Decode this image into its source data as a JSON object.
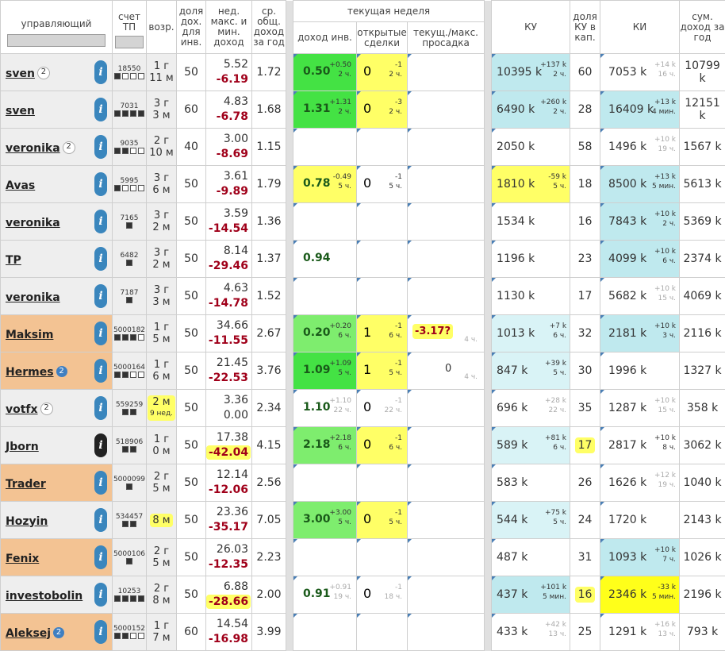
{
  "headers": {
    "manager": "управляющий",
    "account": "счет ТП",
    "age": "возр.",
    "share": "доля дох. для инв.",
    "weekly": "нед. макс. и мин. доход",
    "avg": "ср. общ. доход за год",
    "current_week": "текущая неделя",
    "income": "доход инв.",
    "deals": "открытые сделки",
    "drawdown": "текущ./макс. просадка",
    "ku": "КУ",
    "ku_share": "доля КУ в кап.",
    "ki": "КИ",
    "sum": "сум. доход за год"
  },
  "colors": {
    "blue_icon": "#3a86bd",
    "green": "#44e244",
    "light_green": "#7eed6e",
    "yellow": "#ffff66",
    "cyan": "#bfe9ee",
    "orange": "#f3c393"
  },
  "rows": [
    {
      "name": "sven",
      "badge": "2",
      "badge_style": "w",
      "manager_bg": "gray",
      "icon": "info-icon",
      "icon_dark": false,
      "acct": "18550",
      "dots": [
        1,
        0,
        0,
        0
      ],
      "age1": "1 г",
      "age2": "11 м",
      "age_hl": false,
      "share": "50",
      "wmax": "5.52",
      "wmin": "-6.19",
      "wmin_hl": false,
      "avg": "1.72",
      "inc": "0.50",
      "inc_d1": "+0.50",
      "inc_d2": "2 ч.",
      "inc_bg": "g1",
      "inc_grey": false,
      "deal": "0",
      "deal_d1": "-1",
      "deal_d2": "2 ч.",
      "deal_bg": "y1",
      "deal_grey": false,
      "dd": "",
      "dd_t": "",
      "dd_hl": false,
      "ku": "10395 k",
      "ku_d1": "+137 k",
      "ku_d2": "2 ч.",
      "ku_bg": "c1",
      "ku_grey": false,
      "kushare": "60",
      "kushare_hl": false,
      "ki": "7053 k",
      "ki_d1": "+14 k",
      "ki_d2": "16 ч.",
      "ki_bg": "",
      "ki_grey": true,
      "sum": "10799 k"
    },
    {
      "name": "sven",
      "badge": "",
      "badge_style": "",
      "manager_bg": "gray",
      "icon": "info-icon",
      "icon_dark": false,
      "acct": "7031",
      "dots": [
        1,
        1,
        1,
        1
      ],
      "age1": "3 г",
      "age2": "3 м",
      "age_hl": false,
      "share": "60",
      "wmax": "4.83",
      "wmin": "-6.78",
      "wmin_hl": false,
      "avg": "1.68",
      "inc": "1.31",
      "inc_d1": "+1.31",
      "inc_d2": "2 ч.",
      "inc_bg": "g1",
      "inc_grey": false,
      "deal": "0",
      "deal_d1": "-3",
      "deal_d2": "2 ч.",
      "deal_bg": "y1",
      "deal_grey": false,
      "dd": "",
      "dd_t": "",
      "dd_hl": false,
      "ku": "6490 k",
      "ku_d1": "+260 k",
      "ku_d2": "2 ч.",
      "ku_bg": "c1",
      "ku_grey": false,
      "kushare": "28",
      "kushare_hl": false,
      "ki": "16409 k",
      "ki_d1": "+13 k",
      "ki_d2": "4 мин.",
      "ki_bg": "c1",
      "ki_grey": false,
      "sum": "12151 k"
    },
    {
      "name": "veronika",
      "badge": "2",
      "badge_style": "w",
      "manager_bg": "gray",
      "icon": "info-icon",
      "icon_dark": false,
      "acct": "9035",
      "dots": [
        1,
        1,
        0,
        0
      ],
      "age1": "2 г",
      "age2": "10 м",
      "age_hl": false,
      "share": "40",
      "wmax": "3.00",
      "wmin": "-8.69",
      "wmin_hl": false,
      "avg": "1.15",
      "inc": "",
      "inc_d1": "",
      "inc_d2": "",
      "inc_bg": "",
      "inc_grey": false,
      "deal": "",
      "deal_d1": "",
      "deal_d2": "",
      "deal_bg": "",
      "deal_grey": false,
      "dd": "",
      "dd_t": "",
      "dd_hl": false,
      "ku": "2050 k",
      "ku_d1": "",
      "ku_d2": "",
      "ku_bg": "",
      "ku_grey": false,
      "kushare": "58",
      "kushare_hl": false,
      "ki": "1496 k",
      "ki_d1": "+10 k",
      "ki_d2": "19 ч.",
      "ki_bg": "",
      "ki_grey": true,
      "sum": "1567 k"
    },
    {
      "name": "Avas",
      "badge": "",
      "badge_style": "",
      "manager_bg": "gray",
      "icon": "info-icon",
      "icon_dark": false,
      "acct": "5995",
      "dots": [
        1,
        0,
        0,
        0
      ],
      "age1": "3 г",
      "age2": "6 м",
      "age_hl": false,
      "share": "50",
      "wmax": "3.61",
      "wmin": "-9.89",
      "wmin_hl": false,
      "avg": "1.79",
      "inc": "0.78",
      "inc_d1": "-0.49",
      "inc_d2": "5 ч.",
      "inc_bg": "y1",
      "inc_grey": false,
      "deal": "0",
      "deal_d1": "-1",
      "deal_d2": "5 ч.",
      "deal_bg": "",
      "deal_grey": false,
      "dd": "",
      "dd_t": "",
      "dd_hl": false,
      "ku": "1810 k",
      "ku_d1": "-59 k",
      "ku_d2": "5 ч.",
      "ku_bg": "y1",
      "ku_grey": false,
      "kushare": "18",
      "kushare_hl": false,
      "ki": "8500 k",
      "ki_d1": "+13 k",
      "ki_d2": "5 мин.",
      "ki_bg": "c1",
      "ki_grey": false,
      "sum": "5613 k"
    },
    {
      "name": "veronika",
      "badge": "",
      "badge_style": "",
      "manager_bg": "gray",
      "icon": "info-icon",
      "icon_dark": false,
      "acct": "7165",
      "dots": [
        1
      ],
      "age1": "3 г",
      "age2": "2 м",
      "age_hl": false,
      "share": "50",
      "wmax": "3.59",
      "wmin": "-14.54",
      "wmin_hl": false,
      "avg": "1.36",
      "inc": "",
      "inc_d1": "",
      "inc_d2": "",
      "inc_bg": "",
      "inc_grey": false,
      "deal": "",
      "deal_d1": "",
      "deal_d2": "",
      "deal_bg": "",
      "deal_grey": false,
      "dd": "",
      "dd_t": "",
      "dd_hl": false,
      "ku": "1534 k",
      "ku_d1": "",
      "ku_d2": "",
      "ku_bg": "",
      "ku_grey": false,
      "kushare": "16",
      "kushare_hl": false,
      "ki": "7843 k",
      "ki_d1": "+10 k",
      "ki_d2": "2 ч.",
      "ki_bg": "c1",
      "ki_grey": false,
      "sum": "5369 k"
    },
    {
      "name": "TP",
      "badge": "",
      "badge_style": "",
      "manager_bg": "gray",
      "icon": "info-icon",
      "icon_dark": false,
      "acct": "6482",
      "dots": [
        1
      ],
      "age1": "3 г",
      "age2": "2 м",
      "age_hl": false,
      "share": "50",
      "wmax": "8.14",
      "wmin": "-29.46",
      "wmin_hl": false,
      "avg": "1.37",
      "inc": "0.94",
      "inc_d1": "",
      "inc_d2": "",
      "inc_bg": "",
      "inc_grey": false,
      "deal": "",
      "deal_d1": "",
      "deal_d2": "",
      "deal_bg": "",
      "deal_grey": false,
      "dd": "",
      "dd_t": "",
      "dd_hl": false,
      "ku": "1196 k",
      "ku_d1": "",
      "ku_d2": "",
      "ku_bg": "",
      "ku_grey": false,
      "kushare": "23",
      "kushare_hl": false,
      "ki": "4099 k",
      "ki_d1": "+10 k",
      "ki_d2": "6 ч.",
      "ki_bg": "c1",
      "ki_grey": false,
      "sum": "2374 k"
    },
    {
      "name": "veronika",
      "badge": "",
      "badge_style": "",
      "manager_bg": "gray",
      "icon": "info-icon",
      "icon_dark": false,
      "acct": "7187",
      "dots": [
        1
      ],
      "age1": "3 г",
      "age2": "3 м",
      "age_hl": false,
      "share": "50",
      "wmax": "4.63",
      "wmin": "-14.78",
      "wmin_hl": false,
      "avg": "1.52",
      "inc": "",
      "inc_d1": "",
      "inc_d2": "",
      "inc_bg": "",
      "inc_grey": false,
      "deal": "",
      "deal_d1": "",
      "deal_d2": "",
      "deal_bg": "",
      "deal_grey": false,
      "dd": "",
      "dd_t": "",
      "dd_hl": false,
      "ku": "1130 k",
      "ku_d1": "",
      "ku_d2": "",
      "ku_bg": "",
      "ku_grey": false,
      "kushare": "17",
      "kushare_hl": false,
      "ki": "5682 k",
      "ki_d1": "+10 k",
      "ki_d2": "15 ч.",
      "ki_bg": "",
      "ki_grey": true,
      "sum": "4069 k"
    },
    {
      "name": "Maksim",
      "badge": "",
      "badge_style": "",
      "manager_bg": "orange",
      "icon": "info-icon",
      "icon_dark": false,
      "acct": "5000182",
      "dots": [
        1,
        1,
        1,
        0
      ],
      "age1": "1 г",
      "age2": "5 м",
      "age_hl": false,
      "share": "50",
      "wmax": "34.66",
      "wmin": "-11.55",
      "wmin_hl": false,
      "avg": "2.67",
      "inc": "0.20",
      "inc_d1": "+0.20",
      "inc_d2": "6 ч.",
      "inc_bg": "g2",
      "inc_grey": false,
      "deal": "1",
      "deal_d1": "-1",
      "deal_d2": "6 ч.",
      "deal_bg": "y1",
      "deal_grey": false,
      "dd": "-3.17?",
      "dd_t": "4 ч.",
      "dd_hl": true,
      "ku": "1013 k",
      "ku_d1": "+7 k",
      "ku_d2": "6 ч.",
      "ku_bg": "c2",
      "ku_grey": false,
      "kushare": "32",
      "kushare_hl": false,
      "ki": "2181 k",
      "ki_d1": "+10 k",
      "ki_d2": "3 ч.",
      "ki_bg": "c1",
      "ki_grey": false,
      "sum": "2116 k"
    },
    {
      "name": "Hermes",
      "badge": "2",
      "badge_style": "b",
      "manager_bg": "orange",
      "icon": "info-icon",
      "icon_dark": false,
      "acct": "5000164",
      "dots": [
        1,
        1,
        0,
        0
      ],
      "age1": "1 г",
      "age2": "6 м",
      "age_hl": false,
      "share": "50",
      "wmax": "21.45",
      "wmin": "-22.53",
      "wmin_hl": false,
      "avg": "3.76",
      "inc": "1.09",
      "inc_d1": "+1.09",
      "inc_d2": "5 ч.",
      "inc_bg": "g1",
      "inc_grey": false,
      "deal": "1",
      "deal_d1": "-1",
      "deal_d2": "5 ч.",
      "deal_bg": "y1",
      "deal_grey": false,
      "dd": "0",
      "dd_t": "4 ч.",
      "dd_hl": false,
      "ku": "847 k",
      "ku_d1": "+39 k",
      "ku_d2": "5 ч.",
      "ku_bg": "c2",
      "ku_grey": false,
      "kushare": "30",
      "kushare_hl": false,
      "ki": "1996 k",
      "ki_d1": "",
      "ki_d2": "",
      "ki_bg": "",
      "ki_grey": false,
      "sum": "1327 k"
    },
    {
      "name": "votfx",
      "badge": "2",
      "badge_style": "w",
      "manager_bg": "gray",
      "icon": "info-icon",
      "icon_dark": false,
      "acct": "559259",
      "dots": [
        1,
        1
      ],
      "age1": "2 м",
      "age2": "9 нед.",
      "age_hl": true,
      "share": "50",
      "wmax": "3.36",
      "wmin": "0.00",
      "wmin_hl": false,
      "avg": "2.34",
      "inc": "1.10",
      "inc_d1": "+1.10",
      "inc_d2": "22 ч.",
      "inc_bg": "",
      "inc_grey": true,
      "deal": "0",
      "deal_d1": "-1",
      "deal_d2": "22 ч.",
      "deal_bg": "",
      "deal_grey": true,
      "dd": "",
      "dd_t": "",
      "dd_hl": false,
      "ku": "696 k",
      "ku_d1": "+28 k",
      "ku_d2": "22 ч.",
      "ku_bg": "",
      "ku_grey": true,
      "kushare": "35",
      "kushare_hl": false,
      "ki": "1287 k",
      "ki_d1": "+10 k",
      "ki_d2": "15 ч.",
      "ki_bg": "",
      "ki_grey": true,
      "sum": "358 k"
    },
    {
      "name": "Jborn",
      "badge": "",
      "badge_style": "",
      "manager_bg": "gray",
      "icon": "info-icon",
      "icon_dark": true,
      "acct": "518906",
      "dots": [
        1,
        1
      ],
      "age1": "1 г",
      "age2": "0 м",
      "age_hl": false,
      "share": "50",
      "wmax": "17.38",
      "wmin": "-42.04",
      "wmin_hl": true,
      "avg": "4.15",
      "inc": "2.18",
      "inc_d1": "+2.18",
      "inc_d2": "6 ч.",
      "inc_bg": "g2",
      "inc_grey": false,
      "deal": "0",
      "deal_d1": "-1",
      "deal_d2": "6 ч.",
      "deal_bg": "y1",
      "deal_grey": false,
      "dd": "",
      "dd_t": "",
      "dd_hl": false,
      "ku": "589 k",
      "ku_d1": "+81 k",
      "ku_d2": "6 ч.",
      "ku_bg": "c2",
      "ku_grey": false,
      "kushare": "17",
      "kushare_hl": true,
      "ki": "2817 k",
      "ki_d1": "+10 k",
      "ki_d2": "8 ч.",
      "ki_bg": "",
      "ki_grey": false,
      "sum": "3062 k"
    },
    {
      "name": "Trader",
      "badge": "",
      "badge_style": "",
      "manager_bg": "orange",
      "icon": "info-icon",
      "icon_dark": false,
      "acct": "5000099",
      "dots": [
        1
      ],
      "age1": "2 г",
      "age2": "5 м",
      "age_hl": false,
      "share": "50",
      "wmax": "12.14",
      "wmin": "-12.06",
      "wmin_hl": false,
      "avg": "2.56",
      "inc": "",
      "inc_d1": "",
      "inc_d2": "",
      "inc_bg": "",
      "inc_grey": false,
      "deal": "",
      "deal_d1": "",
      "deal_d2": "",
      "deal_bg": "",
      "deal_grey": false,
      "dd": "",
      "dd_t": "",
      "dd_hl": false,
      "ku": "583 k",
      "ku_d1": "",
      "ku_d2": "",
      "ku_bg": "",
      "ku_grey": false,
      "kushare": "26",
      "kushare_hl": false,
      "ki": "1626 k",
      "ki_d1": "+12 k",
      "ki_d2": "19 ч.",
      "ki_bg": "",
      "ki_grey": true,
      "sum": "1040 k"
    },
    {
      "name": "Hozyin",
      "badge": "",
      "badge_style": "",
      "manager_bg": "gray",
      "icon": "info-icon",
      "icon_dark": false,
      "acct": "534457",
      "dots": [
        1,
        1
      ],
      "age1": "8 м",
      "age2": "",
      "age_hl": true,
      "share": "50",
      "wmax": "23.36",
      "wmin": "-35.17",
      "wmin_hl": false,
      "avg": "7.05",
      "inc": "3.00",
      "inc_d1": "+3.00",
      "inc_d2": "5 ч.",
      "inc_bg": "g2",
      "inc_grey": false,
      "deal": "0",
      "deal_d1": "-1",
      "deal_d2": "5 ч.",
      "deal_bg": "y1",
      "deal_grey": false,
      "dd": "",
      "dd_t": "",
      "dd_hl": false,
      "ku": "544 k",
      "ku_d1": "+75 k",
      "ku_d2": "5 ч.",
      "ku_bg": "c2",
      "ku_grey": false,
      "kushare": "24",
      "kushare_hl": false,
      "ki": "1720 k",
      "ki_d1": "",
      "ki_d2": "",
      "ki_bg": "",
      "ki_grey": false,
      "sum": "2143 k"
    },
    {
      "name": "Fenix",
      "badge": "",
      "badge_style": "",
      "manager_bg": "orange",
      "icon": "info-icon",
      "icon_dark": false,
      "acct": "5000106",
      "dots": [
        1
      ],
      "age1": "2 г",
      "age2": "5 м",
      "age_hl": false,
      "share": "50",
      "wmax": "26.03",
      "wmin": "-12.35",
      "wmin_hl": false,
      "avg": "2.23",
      "inc": "",
      "inc_d1": "",
      "inc_d2": "",
      "inc_bg": "",
      "inc_grey": false,
      "deal": "",
      "deal_d1": "",
      "deal_d2": "",
      "deal_bg": "",
      "deal_grey": false,
      "dd": "",
      "dd_t": "",
      "dd_hl": false,
      "ku": "487 k",
      "ku_d1": "",
      "ku_d2": "",
      "ku_bg": "",
      "ku_grey": false,
      "kushare": "31",
      "kushare_hl": false,
      "ki": "1093 k",
      "ki_d1": "+10 k",
      "ki_d2": "7 ч.",
      "ki_bg": "c1",
      "ki_grey": false,
      "sum": "1026 k"
    },
    {
      "name": "investobolin",
      "badge": "",
      "badge_style": "",
      "manager_bg": "gray",
      "icon": "info-icon",
      "icon_dark": false,
      "acct": "10253",
      "dots": [
        1,
        1,
        1,
        1
      ],
      "age1": "2 г",
      "age2": "8 м",
      "age_hl": false,
      "share": "50",
      "wmax": "6.88",
      "wmin": "-28.66",
      "wmin_hl": true,
      "avg": "2.00",
      "inc": "0.91",
      "inc_d1": "+0.91",
      "inc_d2": "19 ч.",
      "inc_bg": "",
      "inc_grey": true,
      "deal": "0",
      "deal_d1": "-1",
      "deal_d2": "18 ч.",
      "deal_bg": "",
      "deal_grey": true,
      "dd": "",
      "dd_t": "",
      "dd_hl": false,
      "ku": "437 k",
      "ku_d1": "+101 k",
      "ku_d2": "5 мин.",
      "ku_bg": "c1",
      "ku_grey": false,
      "kushare": "16",
      "kushare_hl": true,
      "ki": "2346 k",
      "ki_d1": "-33 k",
      "ki_d2": "5 мин.",
      "ki_bg": "yw",
      "ki_grey": false,
      "sum": "2196 k"
    },
    {
      "name": "Aleksej",
      "badge": "2",
      "badge_style": "b",
      "manager_bg": "orange",
      "icon": "info-icon",
      "icon_dark": false,
      "acct": "5000152",
      "dots": [
        1,
        1,
        0,
        0
      ],
      "age1": "1 г",
      "age2": "7 м",
      "age_hl": false,
      "share": "60",
      "wmax": "14.54",
      "wmin": "-16.98",
      "wmin_hl": false,
      "avg": "3.99",
      "inc": "",
      "inc_d1": "",
      "inc_d2": "",
      "inc_bg": "",
      "inc_grey": false,
      "deal": "",
      "deal_d1": "",
      "deal_d2": "",
      "deal_bg": "",
      "deal_grey": false,
      "dd": "",
      "dd_t": "",
      "dd_hl": false,
      "ku": "433 k",
      "ku_d1": "+42 k",
      "ku_d2": "13 ч.",
      "ku_bg": "",
      "ku_grey": true,
      "kushare": "25",
      "kushare_hl": false,
      "ki": "1291 k",
      "ki_d1": "+16 k",
      "ki_d2": "13 ч.",
      "ki_bg": "",
      "ki_grey": true,
      "sum": "793 k"
    }
  ]
}
